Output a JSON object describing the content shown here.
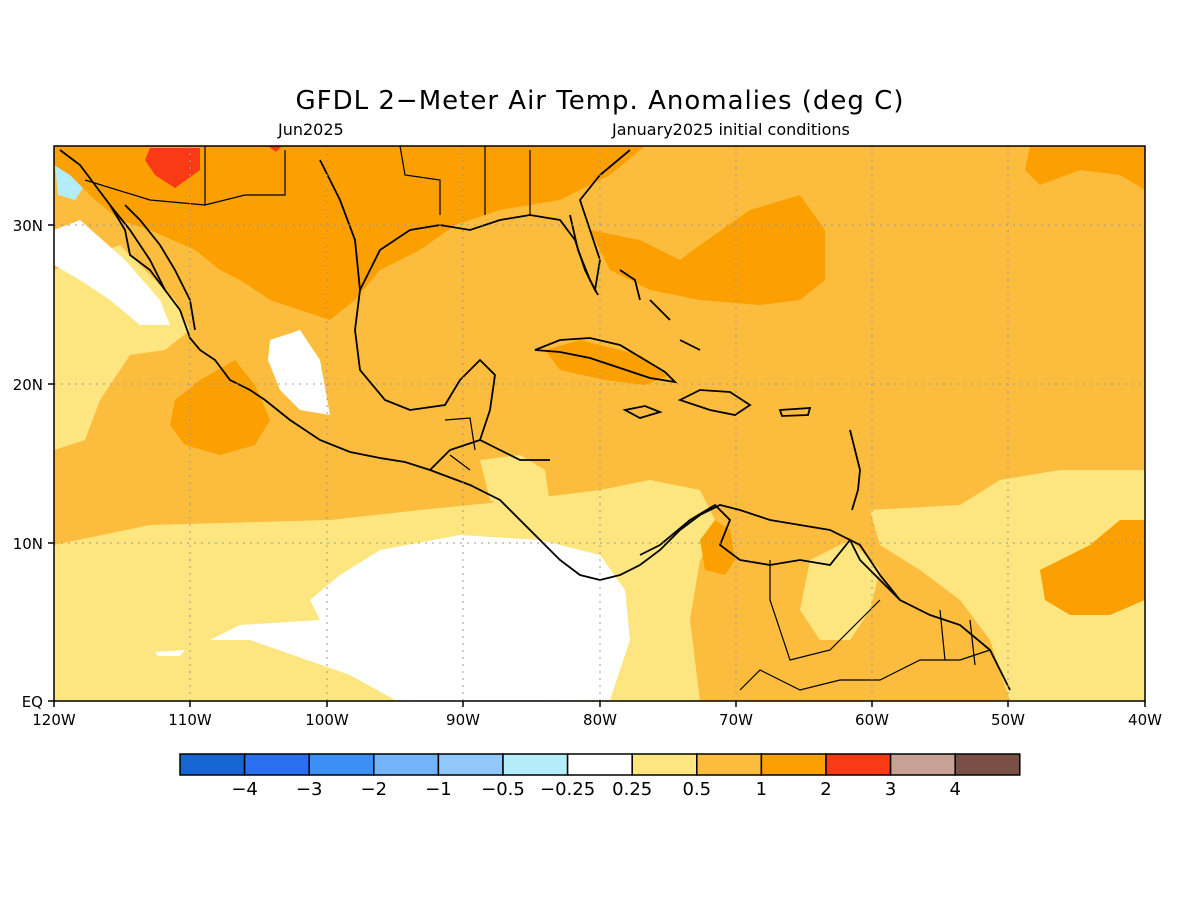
{
  "title": "GFDL 2−Meter Air Temp. Anomalies (deg C)",
  "subtitle_left": "Jun2025",
  "subtitle_right": "January2025 initial conditions",
  "map": {
    "lon_range": [
      -120,
      -40
    ],
    "lat_range": [
      0,
      35
    ],
    "x_ticks": [
      "120W",
      "110W",
      "100W",
      "90W",
      "80W",
      "70W",
      "60W",
      "50W",
      "40W"
    ],
    "y_ticks": [
      "EQ",
      "10N",
      "20N",
      "30N"
    ],
    "grid": true
  },
  "colorbar": {
    "colors": [
      "#1764d4",
      "#2a6ff0",
      "#3b8ff5",
      "#72b4f7",
      "#92c7fa",
      "#b4edfa",
      "#ffffff",
      "#fde680",
      "#fcbd3e",
      "#fba000",
      "#f93a14",
      "#c8a196",
      "#7a4f45"
    ],
    "labels": [
      "−4",
      "−3",
      "−2",
      "−1",
      "−0.5",
      "−0.25",
      "0.25",
      "0.5",
      "1",
      "2",
      "3",
      "4"
    ]
  }
}
